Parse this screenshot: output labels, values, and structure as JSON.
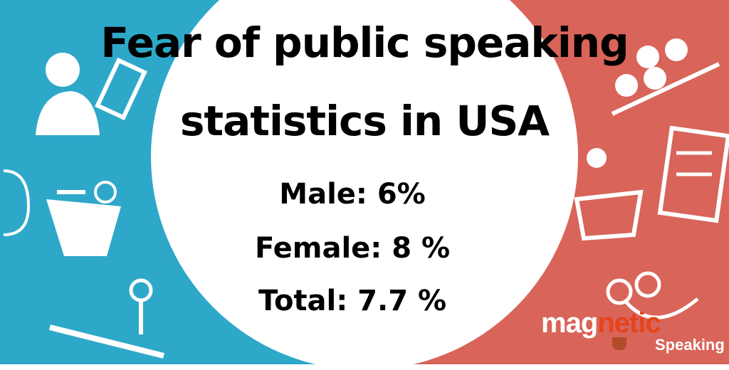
{
  "title": {
    "line1": "Fear of public speaking",
    "line2": "statistics in USA"
  },
  "stats": {
    "male": "Male: 6%",
    "female": "Female: 8 %",
    "total": "Total: 7.7 %"
  },
  "logo": {
    "mag": "mag",
    "netic": "netic",
    "speaking": "Speaking"
  },
  "colors": {
    "left_bg": "#2ea8c9",
    "right_bg": "#d9645a",
    "center": "#ffffff",
    "text": "#000000",
    "logo_accent": "#e4451c"
  },
  "icons": [
    "person-icon",
    "speaker-podium-icon",
    "microphone-icon",
    "audience-icon",
    "newspaper-icon",
    "lectern-icon"
  ]
}
